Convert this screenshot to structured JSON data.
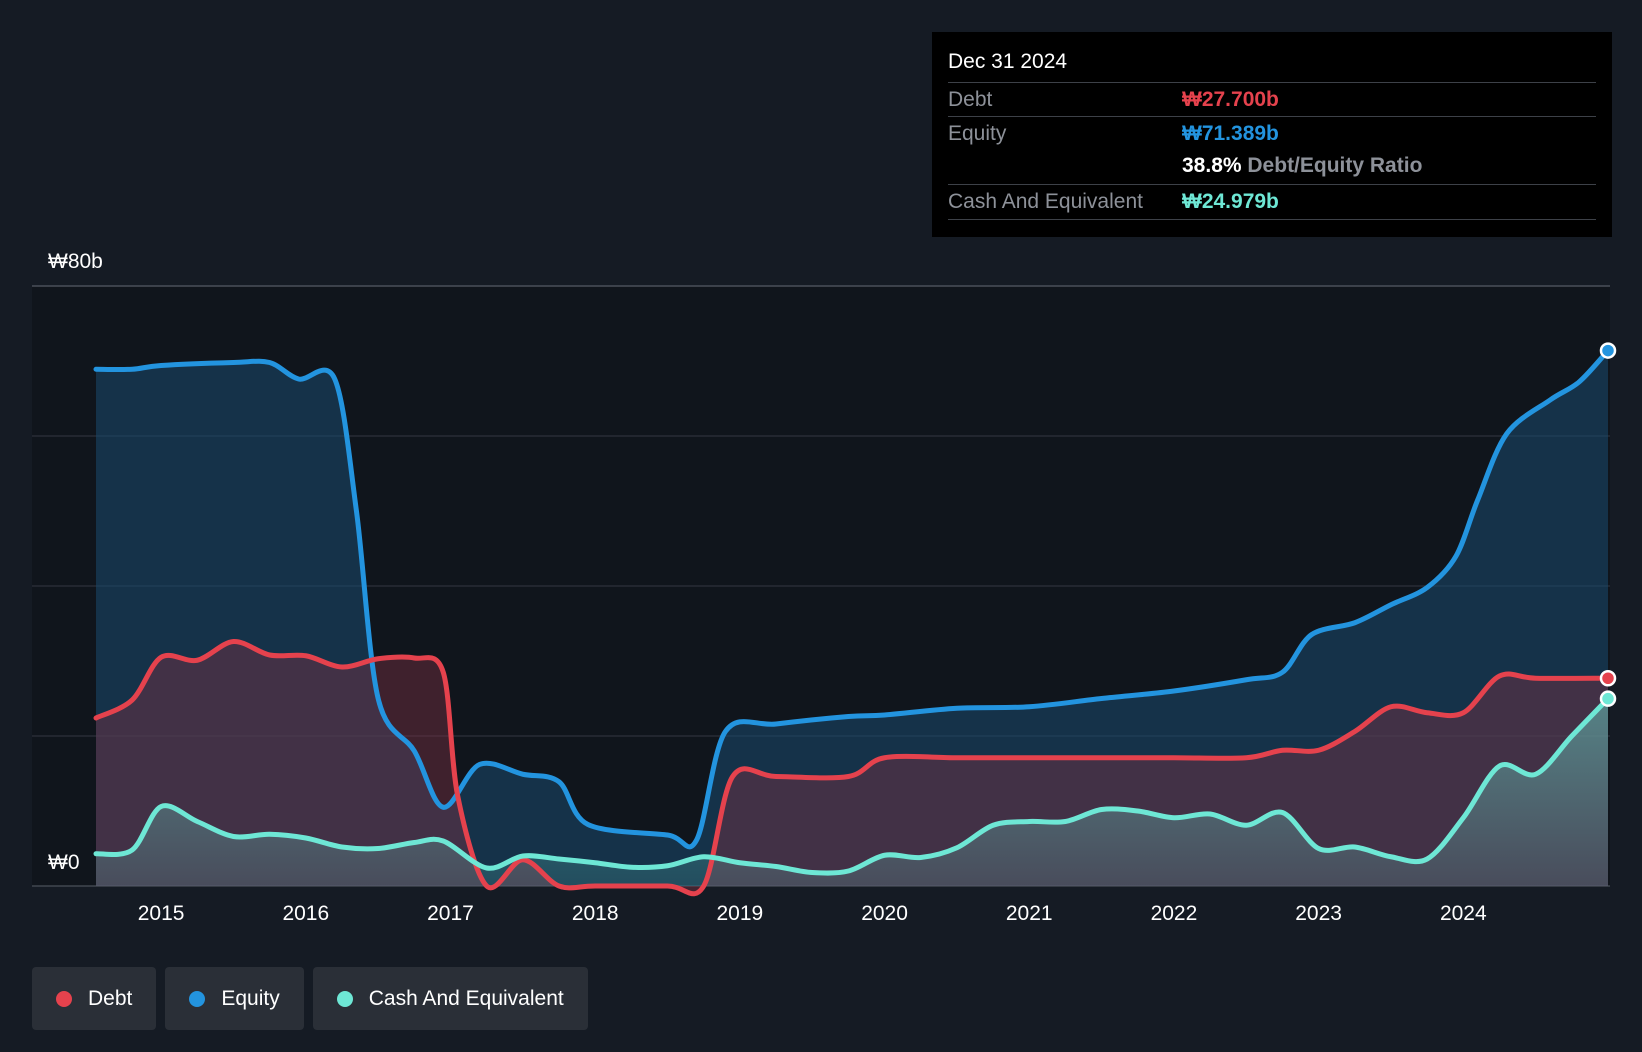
{
  "tooltip": {
    "date": "Dec 31 2024",
    "debt_label": "Debt",
    "debt_value": "₩27.700b",
    "equity_label": "Equity",
    "equity_value": "₩71.389b",
    "ratio_value": "38.8%",
    "ratio_label": "Debt/Equity Ratio",
    "cash_label": "Cash And Equivalent",
    "cash_value": "₩24.979b"
  },
  "legend": [
    {
      "label": "Debt",
      "color": "#e5424d"
    },
    {
      "label": "Equity",
      "color": "#2394df"
    },
    {
      "label": "Cash And Equivalent",
      "color": "#6ee7d5"
    }
  ],
  "chart_data": {
    "type": "area",
    "title": "",
    "xlabel": "",
    "ylabel": "",
    "ylim": [
      0,
      80
    ],
    "y_top_label": "₩80b",
    "y_bottom_label": "₩0",
    "x_ticks": [
      "2015",
      "2016",
      "2017",
      "2018",
      "2019",
      "2020",
      "2021",
      "2022",
      "2023",
      "2024"
    ],
    "xlim": [
      2014.55,
      2025.0
    ],
    "series": [
      {
        "name": "Equity",
        "color": "#2394df",
        "points": [
          [
            2014.55,
            68.9
          ],
          [
            2014.8,
            68.9
          ],
          [
            2015.0,
            69.4
          ],
          [
            2015.5,
            69.8
          ],
          [
            2015.75,
            69.8
          ],
          [
            2015.95,
            67.6
          ],
          [
            2016.2,
            67.6
          ],
          [
            2016.35,
            50
          ],
          [
            2016.5,
            25
          ],
          [
            2016.75,
            18
          ],
          [
            2016.95,
            10.5
          ],
          [
            2017.2,
            16.2
          ],
          [
            2017.5,
            14.9
          ],
          [
            2017.75,
            13.9
          ],
          [
            2017.95,
            8.2
          ],
          [
            2018.5,
            6.8
          ],
          [
            2018.7,
            6.1
          ],
          [
            2018.9,
            20.6
          ],
          [
            2019.25,
            21.6
          ],
          [
            2019.75,
            22.6
          ],
          [
            2020.0,
            22.8
          ],
          [
            2020.5,
            23.7
          ],
          [
            2021.0,
            23.9
          ],
          [
            2021.5,
            25.0
          ],
          [
            2022.0,
            26.0
          ],
          [
            2022.5,
            27.5
          ],
          [
            2022.75,
            28.5
          ],
          [
            2022.95,
            33.5
          ],
          [
            2023.25,
            35.1
          ],
          [
            2023.5,
            37.5
          ],
          [
            2023.75,
            39.8
          ],
          [
            2023.95,
            44
          ],
          [
            2024.1,
            51.5
          ],
          [
            2024.3,
            60.3
          ],
          [
            2024.6,
            64.8
          ],
          [
            2024.8,
            67.2
          ],
          [
            2025.0,
            71.389
          ]
        ]
      },
      {
        "name": "Debt",
        "color": "#e5424d",
        "points": [
          [
            2014.55,
            22.4
          ],
          [
            2014.8,
            24.8
          ],
          [
            2015.0,
            30.5
          ],
          [
            2015.25,
            30.1
          ],
          [
            2015.5,
            32.6
          ],
          [
            2015.75,
            30.8
          ],
          [
            2016.0,
            30.7
          ],
          [
            2016.25,
            29.2
          ],
          [
            2016.5,
            30.3
          ],
          [
            2016.75,
            30.4
          ],
          [
            2016.95,
            28.5
          ],
          [
            2017.05,
            12
          ],
          [
            2017.25,
            0
          ],
          [
            2017.5,
            3.5
          ],
          [
            2017.75,
            0
          ],
          [
            2018.0,
            0
          ],
          [
            2018.5,
            0
          ],
          [
            2018.75,
            0
          ],
          [
            2018.95,
            14.6
          ],
          [
            2019.25,
            14.6
          ],
          [
            2019.75,
            14.6
          ],
          [
            2020.0,
            17.1
          ],
          [
            2020.5,
            17.1
          ],
          [
            2021.0,
            17.1
          ],
          [
            2021.5,
            17.1
          ],
          [
            2022.0,
            17.1
          ],
          [
            2022.5,
            17.1
          ],
          [
            2022.75,
            18.1
          ],
          [
            2023.0,
            18.1
          ],
          [
            2023.25,
            20.6
          ],
          [
            2023.5,
            23.9
          ],
          [
            2023.75,
            23.1
          ],
          [
            2024.0,
            23.1
          ],
          [
            2024.25,
            28.0
          ],
          [
            2024.5,
            27.7
          ],
          [
            2025.0,
            27.7
          ]
        ]
      },
      {
        "name": "Cash And Equivalent",
        "color": "#6ee7d5",
        "points": [
          [
            2014.55,
            4.3
          ],
          [
            2014.8,
            4.8
          ],
          [
            2015.0,
            10.6
          ],
          [
            2015.25,
            8.6
          ],
          [
            2015.5,
            6.6
          ],
          [
            2015.75,
            6.9
          ],
          [
            2016.0,
            6.4
          ],
          [
            2016.25,
            5.2
          ],
          [
            2016.5,
            5.0
          ],
          [
            2016.75,
            5.8
          ],
          [
            2016.95,
            6.0
          ],
          [
            2017.25,
            2.4
          ],
          [
            2017.5,
            4.0
          ],
          [
            2017.75,
            3.6
          ],
          [
            2018.0,
            3.1
          ],
          [
            2018.25,
            2.5
          ],
          [
            2018.5,
            2.7
          ],
          [
            2018.75,
            3.9
          ],
          [
            2019.0,
            3.1
          ],
          [
            2019.25,
            2.6
          ],
          [
            2019.5,
            1.8
          ],
          [
            2019.75,
            2.0
          ],
          [
            2020.0,
            4.1
          ],
          [
            2020.25,
            3.8
          ],
          [
            2020.5,
            5.1
          ],
          [
            2020.75,
            8.1
          ],
          [
            2021.0,
            8.6
          ],
          [
            2021.25,
            8.6
          ],
          [
            2021.5,
            10.2
          ],
          [
            2021.75,
            10.0
          ],
          [
            2022.0,
            9.1
          ],
          [
            2022.25,
            9.6
          ],
          [
            2022.5,
            8.1
          ],
          [
            2022.75,
            9.8
          ],
          [
            2023.0,
            5.0
          ],
          [
            2023.25,
            5.2
          ],
          [
            2023.5,
            3.9
          ],
          [
            2023.75,
            3.6
          ],
          [
            2024.0,
            9.1
          ],
          [
            2024.25,
            16.0
          ],
          [
            2024.5,
            14.9
          ],
          [
            2024.75,
            20.0
          ],
          [
            2025.0,
            24.979
          ]
        ]
      }
    ]
  }
}
